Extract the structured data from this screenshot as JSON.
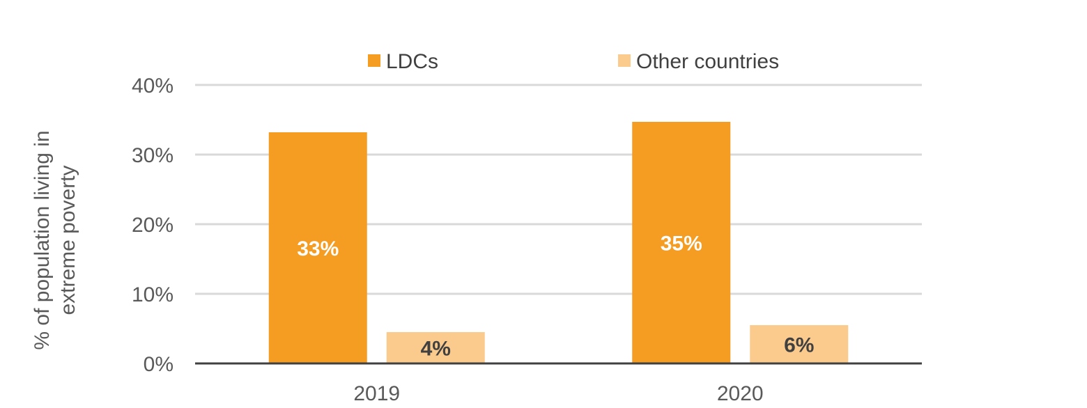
{
  "chart_data": {
    "type": "bar",
    "title": "",
    "xlabel": "",
    "ylabel_lines": [
      "% of population living in",
      "extreme poverty"
    ],
    "categories": [
      "2019",
      "2020"
    ],
    "series": [
      {
        "name": "LDCs",
        "values": [
          33.2,
          34.7
        ],
        "labels": [
          "33%",
          "35%"
        ],
        "color": "#F59C23",
        "label_color": "#FFFFFF"
      },
      {
        "name": "Other countries",
        "values": [
          4.5,
          5.5
        ],
        "labels": [
          "4%",
          "6%"
        ],
        "color": "#FBCB8D",
        "label_color": "#404040"
      }
    ],
    "ylim": [
      0,
      40
    ],
    "yticks": [
      0,
      10,
      20,
      30,
      40
    ],
    "ytick_labels": [
      "0%",
      "10%",
      "20%",
      "30%",
      "40%"
    ],
    "grid": true,
    "legend_position": "top-center",
    "gridline_color": "#D9D9D9",
    "axis_color": "#404040"
  }
}
